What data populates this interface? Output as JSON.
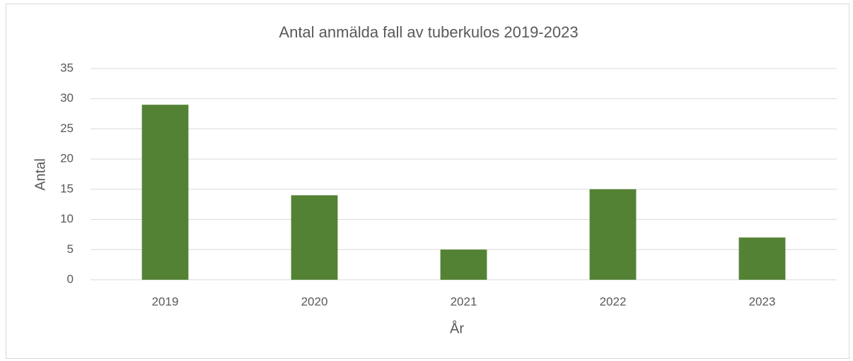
{
  "chart_data": {
    "type": "bar",
    "title": "Antal anmälda fall av tuberkulos 2019-2023",
    "x_label": "År",
    "y_label": "Antal",
    "categories": [
      "2019",
      "2020",
      "2021",
      "2022",
      "2023"
    ],
    "values": [
      29,
      14,
      5,
      15,
      7
    ],
    "color": "#548235",
    "ylim": [
      0,
      35
    ],
    "yticks": [
      0,
      5,
      10,
      15,
      20,
      25,
      30,
      35
    ],
    "grid": true
  }
}
